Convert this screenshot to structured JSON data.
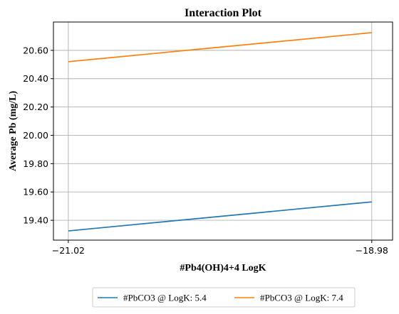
{
  "chart_data": {
    "type": "line",
    "title": "Interaction Plot",
    "xlabel": "#Pb4(OH)4+4 LogK",
    "ylabel": "Average Pb (mg/L)",
    "x": [
      -21.02,
      -18.98
    ],
    "x_tick_labels": [
      "−21.02",
      "−18.98"
    ],
    "y_ticks": [
      19.4,
      19.6,
      19.8,
      20.0,
      20.2,
      20.4,
      20.6
    ],
    "y_tick_labels": [
      "19.40",
      "19.60",
      "19.80",
      "20.00",
      "20.20",
      "20.40",
      "20.60"
    ],
    "xlim": [
      -21.12,
      -18.84
    ],
    "ylim": [
      19.26,
      20.8
    ],
    "grid": true,
    "legend_position": "bottom-outside",
    "series": [
      {
        "name": "#PbCO3 @ LogK: 5.4",
        "color": "#1f77b4",
        "values": [
          19.325,
          19.53
        ]
      },
      {
        "name": "#PbCO3 @ LogK: 7.4",
        "color": "#ff7f0e",
        "values": [
          20.52,
          20.725
        ]
      }
    ]
  }
}
